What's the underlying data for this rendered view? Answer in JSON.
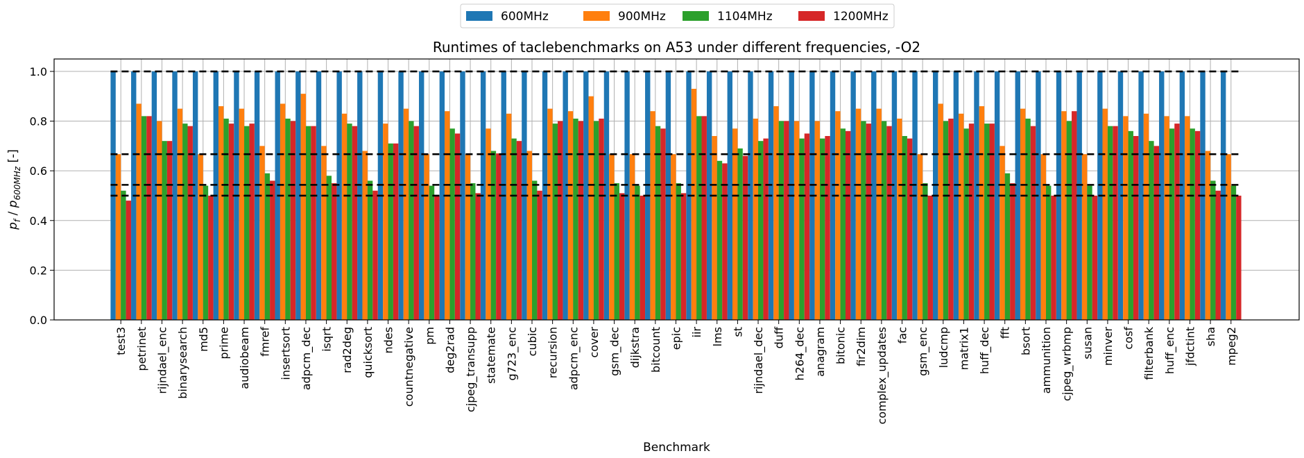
{
  "chart_data": {
    "type": "bar",
    "title": "Runtimes of taclebenchmarks on A53 under different frequencies, -O2",
    "xlabel": "Benchmark",
    "ylabel_main": "p",
    "ylabel_sub_f": "f",
    "ylabel_slash": " / ",
    "ylabel_p": "p",
    "ylabel_sub_600": "600MHz",
    "ylabel_unit": " [-]",
    "ylim": [
      0,
      1.05
    ],
    "yticks": [
      "0.0",
      "0.2",
      "0.4",
      "0.6",
      "0.8",
      "1.0"
    ],
    "ytick_values": [
      0,
      0.2,
      0.4,
      0.6,
      0.8,
      1.0
    ],
    "grid": true,
    "legend_position": "top-center",
    "reference_lines": [
      1.0,
      0.667,
      0.5435,
      0.5
    ],
    "categories": [
      "test3",
      "petrinet",
      "rijndael_enc",
      "binarysearch",
      "md5",
      "prime",
      "audiobeam",
      "fmref",
      "insertsort",
      "adpcm_dec",
      "isqrt",
      "rad2deg",
      "quicksort",
      "ndes",
      "countnegative",
      "pm",
      "deg2rad",
      "cjpeg_transupp",
      "statemate",
      "g723_enc",
      "cubic",
      "recursion",
      "adpcm_enc",
      "cover",
      "gsm_dec",
      "dijkstra",
      "bitcount",
      "epic",
      "iir",
      "lms",
      "st",
      "rijndael_dec",
      "duff",
      "h264_dec",
      "anagram",
      "bitonic",
      "fir2dim",
      "complex_updates",
      "fac",
      "gsm_enc",
      "ludcmp",
      "matrix1",
      "huff_dec",
      "fft",
      "bsort",
      "ammunition",
      "cjpeg_wrbmp",
      "susan",
      "minver",
      "cosf",
      "filterbank",
      "huff_enc",
      "jfdctint",
      "sha",
      "mpeg2"
    ],
    "series": [
      {
        "name": "600MHz",
        "color": "#1f77b4",
        "values": [
          1,
          1,
          1,
          1,
          1,
          1,
          1,
          1,
          1,
          1,
          1,
          1,
          1,
          1,
          1,
          1,
          1,
          1,
          1,
          1,
          1,
          1,
          1,
          1,
          1,
          1,
          1,
          1,
          1,
          1,
          1,
          1,
          1,
          1,
          1,
          1,
          1,
          1,
          1,
          1,
          1,
          1,
          1,
          1,
          1,
          1,
          1,
          1,
          1,
          1,
          1,
          1,
          1,
          1,
          1
        ]
      },
      {
        "name": "900MHz",
        "color": "#ff7f0e",
        "values": [
          0.667,
          0.87,
          0.8,
          0.85,
          0.667,
          0.86,
          0.85,
          0.7,
          0.87,
          0.91,
          0.7,
          0.83,
          0.68,
          0.79,
          0.85,
          0.667,
          0.84,
          0.667,
          0.77,
          0.83,
          0.68,
          0.85,
          0.84,
          0.9,
          0.667,
          0.667,
          0.84,
          0.667,
          0.93,
          0.74,
          0.77,
          0.81,
          0.86,
          0.8,
          0.8,
          0.84,
          0.85,
          0.85,
          0.81,
          0.667,
          0.87,
          0.83,
          0.86,
          0.7,
          0.85,
          0.667,
          0.84,
          0.667,
          0.85,
          0.82,
          0.83,
          0.82,
          0.82,
          0.68,
          0.667
        ]
      },
      {
        "name": "1104MHz",
        "color": "#2ca02c",
        "values": [
          0.52,
          0.82,
          0.72,
          0.79,
          0.54,
          0.81,
          0.78,
          0.59,
          0.81,
          0.78,
          0.58,
          0.79,
          0.56,
          0.71,
          0.8,
          0.54,
          0.77,
          0.55,
          0.68,
          0.73,
          0.56,
          0.79,
          0.81,
          0.8,
          0.55,
          0.54,
          0.78,
          0.55,
          0.82,
          0.64,
          0.69,
          0.72,
          0.8,
          0.73,
          0.73,
          0.77,
          0.8,
          0.8,
          0.74,
          0.55,
          0.8,
          0.77,
          0.79,
          0.59,
          0.81,
          0.54,
          0.8,
          0.54,
          0.78,
          0.76,
          0.72,
          0.77,
          0.77,
          0.56,
          0.54
        ]
      },
      {
        "name": "1200MHz",
        "color": "#d62728",
        "values": [
          0.48,
          0.82,
          0.72,
          0.78,
          0.5,
          0.79,
          0.79,
          0.56,
          0.8,
          0.78,
          0.55,
          0.78,
          0.52,
          0.71,
          0.78,
          0.5,
          0.75,
          0.51,
          0.67,
          0.72,
          0.52,
          0.8,
          0.8,
          0.81,
          0.51,
          0.5,
          0.77,
          0.51,
          0.82,
          0.63,
          0.66,
          0.73,
          0.8,
          0.75,
          0.74,
          0.76,
          0.79,
          0.78,
          0.73,
          0.5,
          0.81,
          0.79,
          0.79,
          0.55,
          0.78,
          0.5,
          0.84,
          0.5,
          0.78,
          0.74,
          0.7,
          0.79,
          0.76,
          0.52,
          0.5
        ]
      }
    ]
  }
}
